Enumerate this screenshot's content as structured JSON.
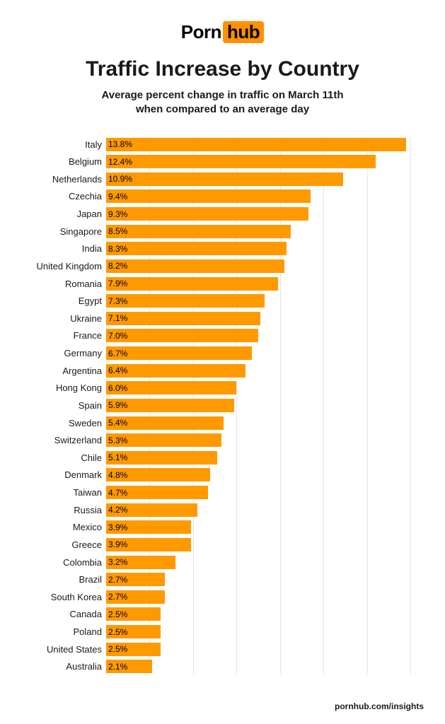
{
  "logo": {
    "part1": "Porn",
    "part2": "hub",
    "hub_bg": "#ff9000"
  },
  "title": "Traffic Increase by Country",
  "subtitle_line1": "Average percent change in traffic on March 11th",
  "subtitle_line2": "when compared to an average day",
  "footer": "pornhub.com/insights",
  "chart": {
    "type": "bar-horizontal",
    "bar_color": "#ff9900",
    "grid_color": "#e6e6e6",
    "background_color": "#ffffff",
    "label_fontsize": 13,
    "value_fontsize": 12,
    "xlim": [
      0,
      14
    ],
    "gridlines_at": [
      0,
      2,
      4,
      6,
      8,
      10,
      12,
      14
    ],
    "data": [
      {
        "country": "Italy",
        "value": 13.8,
        "label": "13.8%"
      },
      {
        "country": "Belgium",
        "value": 12.4,
        "label": "12.4%"
      },
      {
        "country": "Netherlands",
        "value": 10.9,
        "label": "10.9%"
      },
      {
        "country": "Czechia",
        "value": 9.4,
        "label": "9.4%"
      },
      {
        "country": "Japan",
        "value": 9.3,
        "label": "9.3%"
      },
      {
        "country": "Singapore",
        "value": 8.5,
        "label": "8.5%"
      },
      {
        "country": "India",
        "value": 8.3,
        "label": "8.3%"
      },
      {
        "country": "United Kingdom",
        "value": 8.2,
        "label": "8.2%"
      },
      {
        "country": "Romania",
        "value": 7.9,
        "label": "7.9%"
      },
      {
        "country": "Egypt",
        "value": 7.3,
        "label": "7.3%"
      },
      {
        "country": "Ukraine",
        "value": 7.1,
        "label": "7.1%"
      },
      {
        "country": "France",
        "value": 7.0,
        "label": "7.0%"
      },
      {
        "country": "Germany",
        "value": 6.7,
        "label": "6.7%"
      },
      {
        "country": "Argentina",
        "value": 6.4,
        "label": "6.4%"
      },
      {
        "country": "Hong Kong",
        "value": 6.0,
        "label": "6.0%"
      },
      {
        "country": "Spain",
        "value": 5.9,
        "label": "5.9%"
      },
      {
        "country": "Sweden",
        "value": 5.4,
        "label": "5.4%"
      },
      {
        "country": "Switzerland",
        "value": 5.3,
        "label": "5.3%"
      },
      {
        "country": "Chile",
        "value": 5.1,
        "label": "5.1%"
      },
      {
        "country": "Denmark",
        "value": 4.8,
        "label": "4.8%"
      },
      {
        "country": "Taiwan",
        "value": 4.7,
        "label": "4.7%"
      },
      {
        "country": "Russia",
        "value": 4.2,
        "label": "4.2%"
      },
      {
        "country": "Mexico",
        "value": 3.9,
        "label": "3.9%"
      },
      {
        "country": "Greece",
        "value": 3.9,
        "label": "3.9%"
      },
      {
        "country": "Colombia",
        "value": 3.2,
        "label": "3.2%"
      },
      {
        "country": "Brazil",
        "value": 2.7,
        "label": "2.7%"
      },
      {
        "country": "South Korea",
        "value": 2.7,
        "label": "2.7%"
      },
      {
        "country": "Canada",
        "value": 2.5,
        "label": "2.5%"
      },
      {
        "country": "Poland",
        "value": 2.5,
        "label": "2.5%"
      },
      {
        "country": "United States",
        "value": 2.5,
        "label": "2.5%"
      },
      {
        "country": "Australia",
        "value": 2.1,
        "label": "2.1%"
      }
    ]
  }
}
